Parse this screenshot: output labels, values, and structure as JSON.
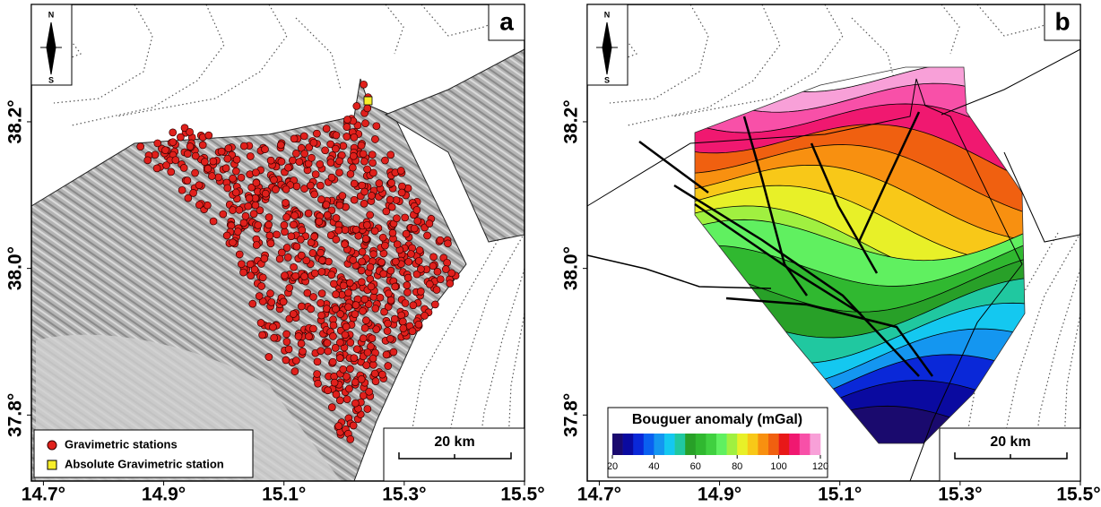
{
  "lonlim": [
    14.68,
    15.5
  ],
  "latlim": [
    37.71,
    38.36
  ],
  "panels": [
    {
      "label": "a",
      "north": "N",
      "south": "S",
      "x_ticks": [
        {
          "value": 14.7,
          "label": "14.7°"
        },
        {
          "value": 14.9,
          "label": "14.9°"
        },
        {
          "value": 15.1,
          "label": "15.1°"
        },
        {
          "value": 15.3,
          "label": "15.3°"
        },
        {
          "value": 15.5,
          "label": "15.5°"
        }
      ],
      "y_ticks": [
        {
          "value": 37.8,
          "label": "37.8°"
        },
        {
          "value": 38.0,
          "label": "38.0°"
        },
        {
          "value": 38.2,
          "label": "38.2°"
        }
      ],
      "legend": [
        {
          "label": "Gravimetric stations",
          "color": "#e0201c"
        },
        {
          "label": "Absolute Gravimetric station",
          "color": "#f7ee2a"
        }
      ],
      "scale_label": "20 km"
    },
    {
      "label": "b",
      "north": "N",
      "south": "S",
      "x_ticks": [
        {
          "value": 14.7,
          "label": "14.7°"
        },
        {
          "value": 14.9,
          "label": "14.9°"
        },
        {
          "value": 15.1,
          "label": "15.1°"
        },
        {
          "value": 15.3,
          "label": "15.3°"
        },
        {
          "value": 15.5,
          "label": "15.5°"
        }
      ],
      "y_ticks": [
        {
          "value": 37.8,
          "label": "37.8°"
        },
        {
          "value": 38.0,
          "label": "38.0°"
        },
        {
          "value": 38.2,
          "label": "38.2°"
        }
      ],
      "scale_label": "20 km",
      "colorbar": {
        "title": "Bouguer anomaly (mGal)",
        "range": [
          20,
          120
        ],
        "ticks": [
          20,
          40,
          60,
          80,
          100,
          120
        ],
        "colors": [
          "#1a0a6e",
          "#0a0aa0",
          "#0a28d8",
          "#0a60f0",
          "#1496f0",
          "#14c8f0",
          "#20c8a0",
          "#28a028",
          "#30b830",
          "#40d040",
          "#60f060",
          "#a0f040",
          "#e8f028",
          "#f8c818",
          "#f89010",
          "#f06010",
          "#e81818",
          "#f01870",
          "#f850a8",
          "#f8a0d8"
        ]
      }
    }
  ]
}
